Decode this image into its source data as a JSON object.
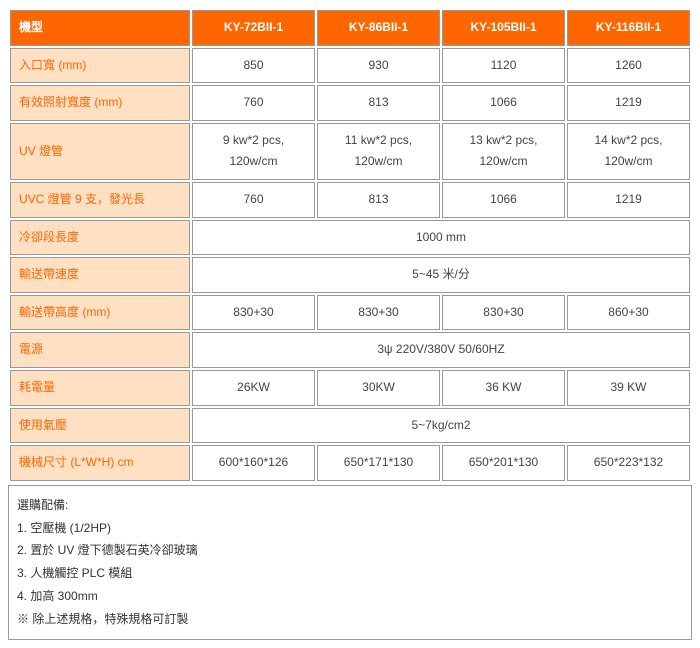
{
  "colors": {
    "header_bg": "#ff6600",
    "header_fg": "#ffffff",
    "label_bg": "#ffe0c2",
    "label_fg": "#ff6600",
    "border": "#999999",
    "data_fg": "#444444"
  },
  "header": {
    "label": "機型",
    "models": [
      "KY-72BII-1",
      "KY-86BII-1",
      "KY-105BII-1",
      "KY-116BII-1"
    ]
  },
  "rows": [
    {
      "label": "入口寬 (mm)",
      "cells": [
        "850",
        "930",
        "1120",
        "1260"
      ]
    },
    {
      "label": "有效照射寬度 (mm)",
      "cells": [
        "760",
        "813",
        "1066",
        "1219"
      ]
    },
    {
      "label": "UV 燈管",
      "cells": [
        "9 kw*2 pcs, 120w/cm",
        "11 kw*2 pcs, 120w/cm",
        "13 kw*2 pcs, 120w/cm",
        "14 kw*2 pcs, 120w/cm"
      ]
    },
    {
      "label": "UVC 燈管 9 支，發光長",
      "cells": [
        "760",
        "813",
        "1066",
        "1219"
      ]
    },
    {
      "label": "冷卻段長度",
      "span": "1000 mm"
    },
    {
      "label": "輸送帶速度",
      "span": "5~45 米/分"
    },
    {
      "label": "輸送帶高度 (mm)",
      "cells": [
        "830+30",
        "830+30",
        "830+30",
        "860+30"
      ]
    },
    {
      "label": "電源",
      "span": "3ψ 220V/380V 50/60HZ"
    },
    {
      "label": "耗電量",
      "cells": [
        "26KW",
        "30KW",
        "36 KW",
        "39 KW"
      ]
    },
    {
      "label": "使用氣壓",
      "span": "5~7kg/cm2"
    },
    {
      "label": "機械尺寸 (L*W*H) cm",
      "cells": [
        "600*160*126",
        "650*171*130",
        "650*201*130",
        "650*223*132"
      ]
    }
  ],
  "footnotes": {
    "title": "選購配備:",
    "items": [
      "1. 空壓機 (1/2HP)",
      "2. 置於 UV 燈下德製石英冷卻玻璃",
      "3. 人機觸控 PLC 模組",
      "4. 加高 300mm"
    ],
    "note": "※ 除上述規格，特殊規格可訂製"
  }
}
